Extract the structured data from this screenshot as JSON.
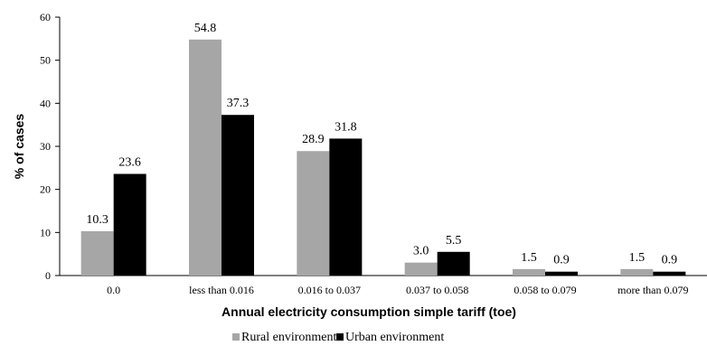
{
  "chart_data": {
    "type": "bar",
    "xlabel": "Annual electricity consumption simple tariff (toe)",
    "ylabel": "% of cases",
    "ylim": [
      0,
      60
    ],
    "yticks": [
      0,
      10,
      20,
      30,
      40,
      50,
      60
    ],
    "grid": false,
    "legend_position": "bottom",
    "categories": [
      "0.0",
      "less than 0.016",
      "0.016 to 0.037",
      "0.037 to 0.058",
      "0.058 to 0.079",
      "more than 0.079"
    ],
    "series": [
      {
        "name": "Rural environment",
        "color": "#a6a6a6",
        "values": [
          10.3,
          54.8,
          28.9,
          3.0,
          1.5,
          1.5
        ],
        "labels": [
          "10.3",
          "54.8",
          "28.9",
          "3.0",
          "1.5",
          "1.5"
        ]
      },
      {
        "name": "Urban environment",
        "color": "#000000",
        "values": [
          23.6,
          37.3,
          31.8,
          5.5,
          0.9,
          0.9
        ],
        "labels": [
          "23.6",
          "37.3",
          "31.8",
          "5.5",
          "0.9",
          "0.9"
        ]
      }
    ]
  }
}
